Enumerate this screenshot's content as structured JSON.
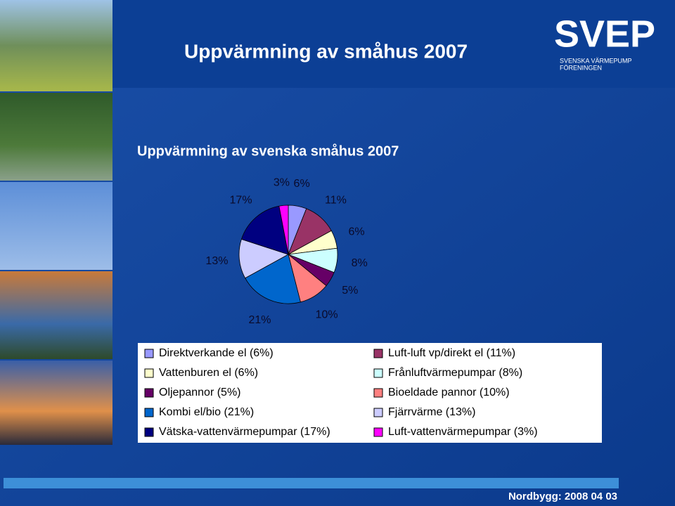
{
  "slide": {
    "title": "Uppvärmning av småhus 2007",
    "logo": "SVEP",
    "logo_subtitle": [
      "SVENSKA VÄRMEPUMP",
      "FÖRENINGEN"
    ],
    "footer": "Nordbygg: 2008 04 03"
  },
  "chart_data": {
    "type": "pie",
    "title": "Uppvärmning av svenska småhus 2007",
    "categories": [
      "Direktverkande el (6%)",
      "Luft-luft vp/direkt el (11%)",
      "Vattenburen el (6%)",
      "Frånluftvärmepumpar (8%)",
      "Oljepannor (5%)",
      "Bioeldade pannor (10%)",
      "Kombi el/bio (21%)",
      "Fjärrvärme (13%)",
      "Vätska-vattenvärmepumpar (17%)",
      "Luft-vattenvärmepumpar (3%)"
    ],
    "values": [
      6,
      11,
      6,
      8,
      5,
      10,
      21,
      13,
      17,
      3
    ],
    "value_labels": [
      "6%",
      "11%",
      "6%",
      "8%",
      "5%",
      "10%",
      "21%",
      "13%",
      "17%",
      "3%"
    ],
    "colors": [
      "#9999ff",
      "#993366",
      "#ffffcc",
      "#ccffff",
      "#660066",
      "#ff8080",
      "#0066cc",
      "#ccccff",
      "#000080",
      "#ff00ff"
    ]
  }
}
